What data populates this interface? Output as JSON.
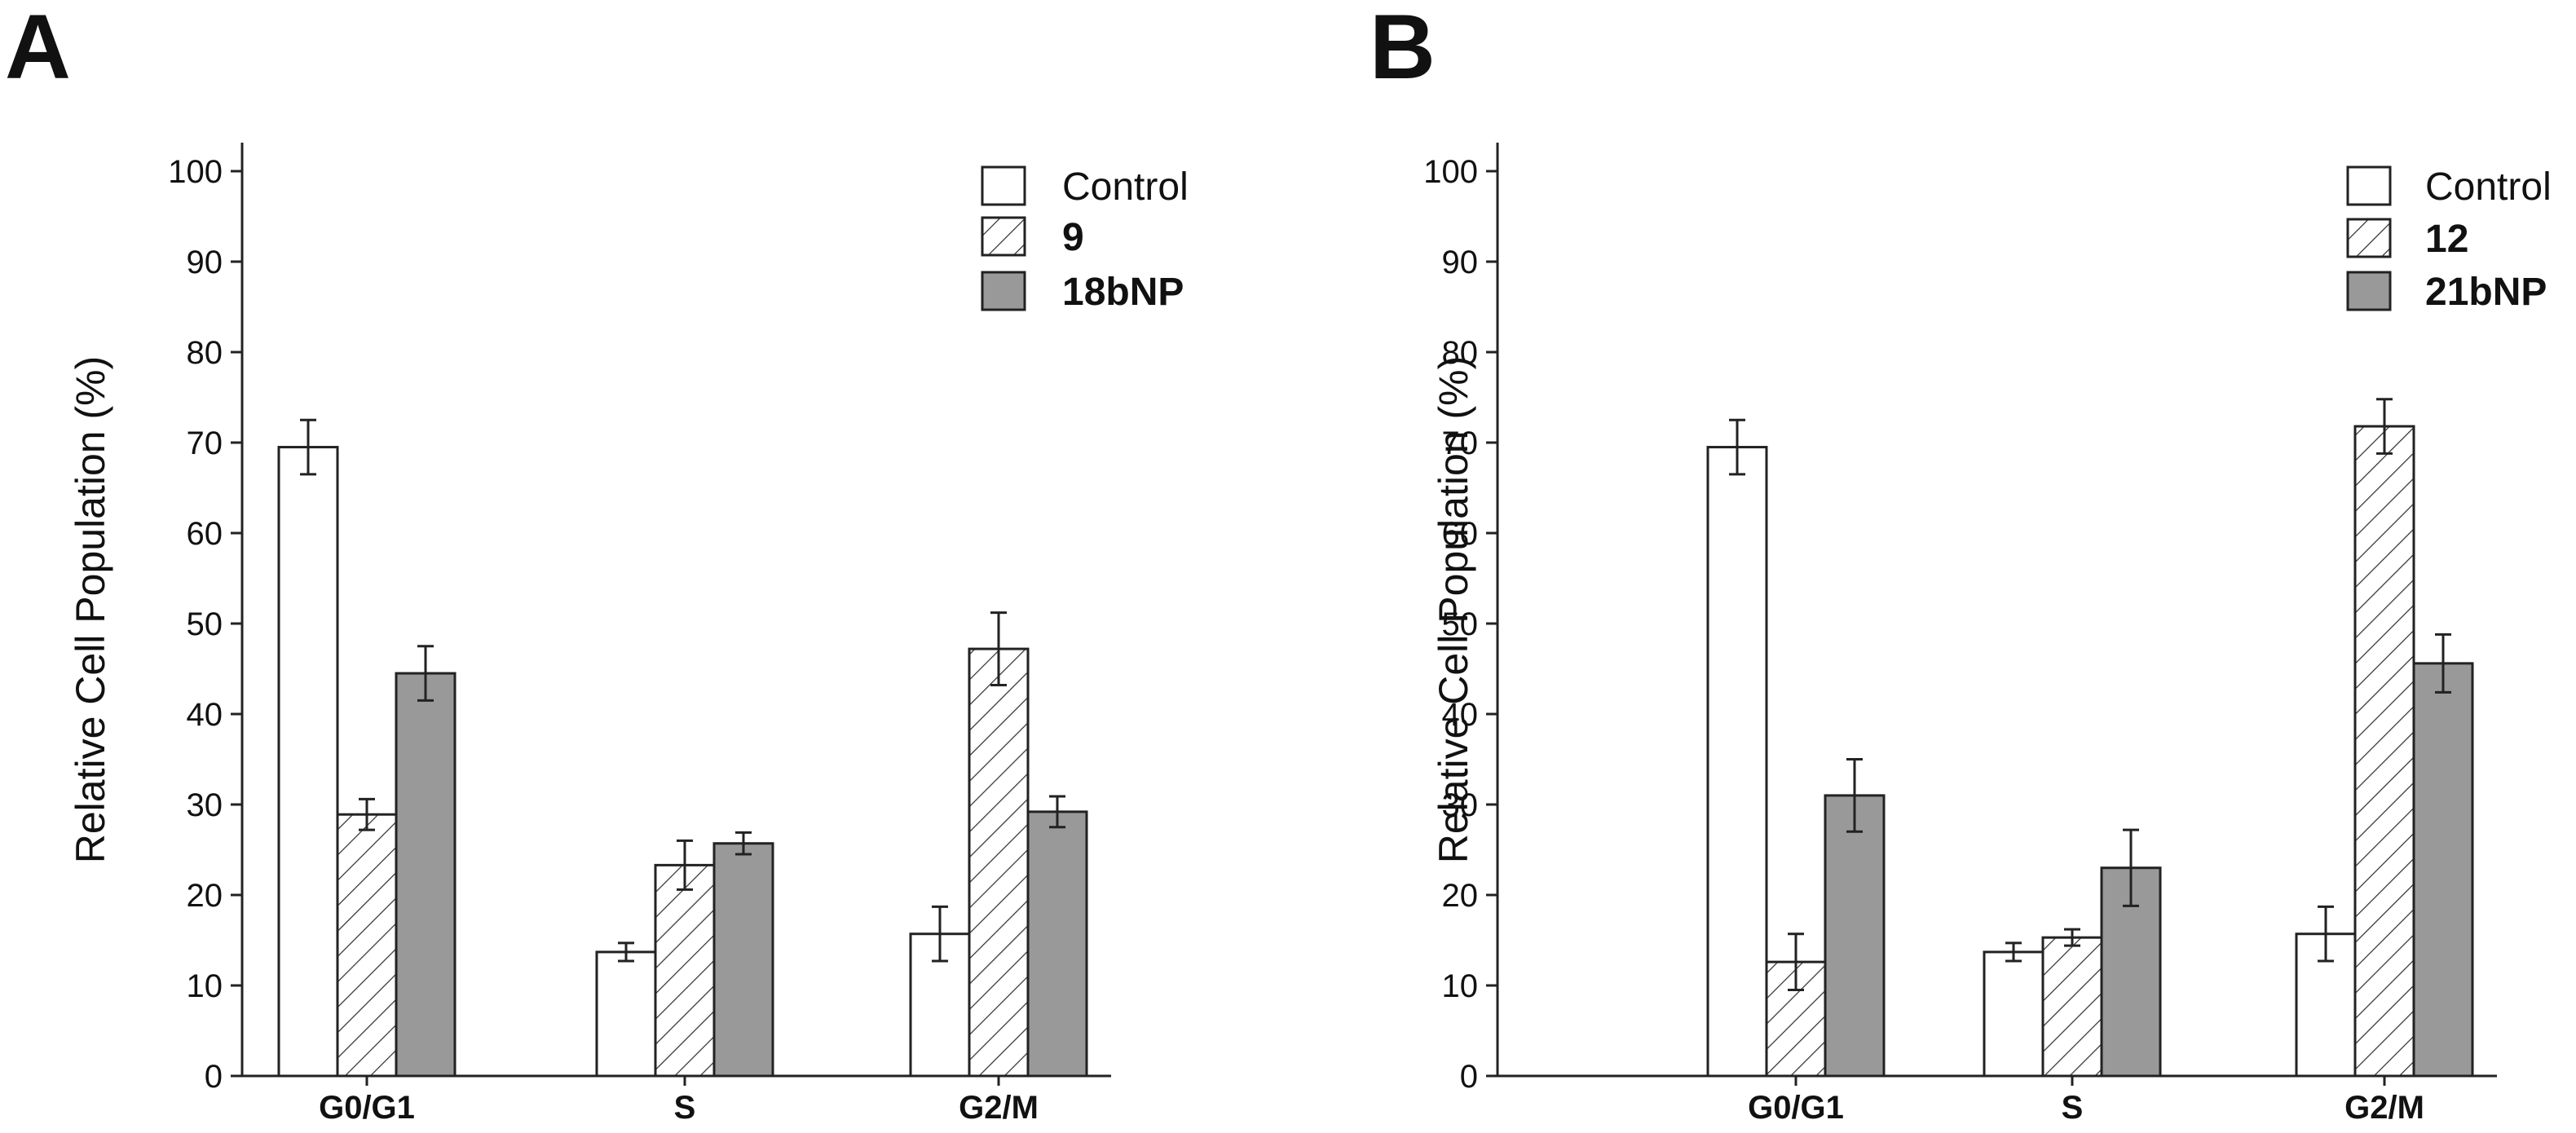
{
  "chart_data": [
    {
      "type": "bar",
      "panel_label": "A",
      "title": "",
      "xlabel": "",
      "ylabel": "Relative Cell Population (%)",
      "ylim": [
        0,
        100
      ],
      "yticks": [
        "0",
        "10",
        "20",
        "30",
        "40",
        "50",
        "60",
        "70",
        "80",
        "90",
        "100"
      ],
      "categories": [
        "G0/G1",
        "S",
        "G2/M"
      ],
      "legend_position": "top-right",
      "series": [
        {
          "name": "Control",
          "label_bold": false,
          "fill": "white",
          "values": [
            69.5,
            13.7,
            15.7
          ],
          "errors": [
            3.0,
            1.0,
            3.0
          ]
        },
        {
          "name": "9",
          "label_bold": true,
          "fill": "hatched",
          "values": [
            28.9,
            23.3,
            47.2
          ],
          "errors": [
            1.7,
            2.7,
            4.0
          ]
        },
        {
          "name": "18bNP",
          "label_bold": true,
          "fill": "gray",
          "values": [
            44.5,
            25.7,
            29.2
          ],
          "errors": [
            3.0,
            1.2,
            1.7
          ]
        }
      ]
    },
    {
      "type": "bar",
      "panel_label": "B",
      "title": "",
      "xlabel": "",
      "ylabel": "Relative Cell Population (%)",
      "ylim": [
        0,
        100
      ],
      "yticks": [
        "0",
        "10",
        "20",
        "30",
        "40",
        "50",
        "60",
        "70",
        "80",
        "90",
        "100"
      ],
      "categories": [
        "G0/G1",
        "S",
        "G2/M"
      ],
      "legend_position": "top-right",
      "series": [
        {
          "name": "Control",
          "label_bold": false,
          "fill": "white",
          "values": [
            69.5,
            13.7,
            15.7
          ],
          "errors": [
            3.0,
            1.0,
            3.0
          ]
        },
        {
          "name": "12",
          "label_bold": true,
          "fill": "hatched",
          "values": [
            12.6,
            15.3,
            71.8
          ],
          "errors": [
            3.1,
            0.9,
            3.0
          ]
        },
        {
          "name": "21bNP",
          "label_bold": true,
          "fill": "gray",
          "values": [
            31.0,
            23.0,
            45.6
          ],
          "errors": [
            4.0,
            4.2,
            3.2
          ]
        }
      ]
    }
  ]
}
